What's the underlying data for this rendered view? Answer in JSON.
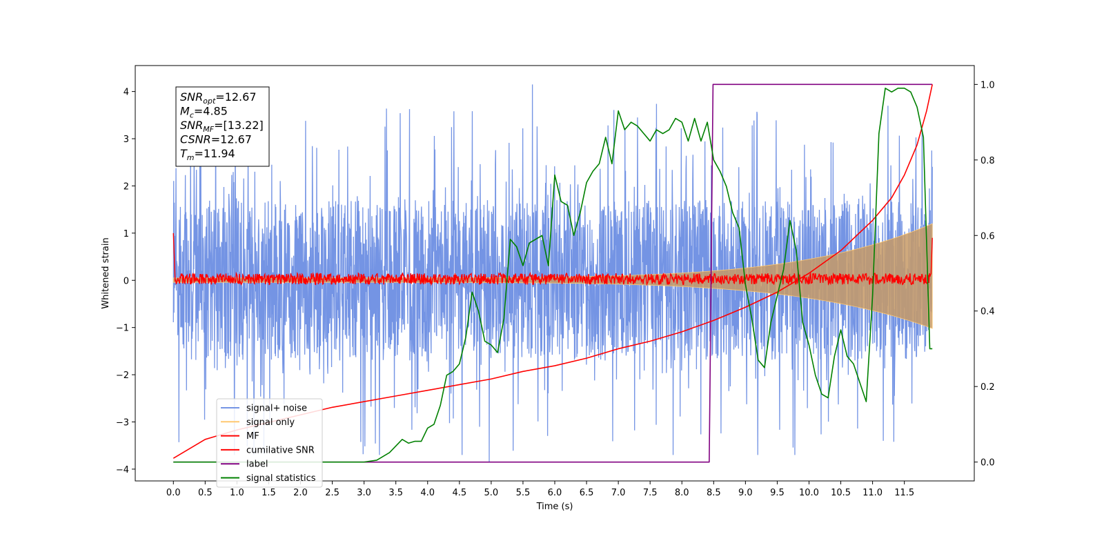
{
  "chart_data": {
    "type": "line",
    "xlabel": "Time (s)",
    "ylabel": "Whitened strain",
    "xlim": [
      -0.6,
      12.6
    ],
    "ylim_left": [
      -4.25,
      4.55
    ],
    "ylim_right": [
      -0.05,
      1.05
    ],
    "x_ticks": [
      "0.0",
      "0.5",
      "1.0",
      "1.5",
      "2.0",
      "2.5",
      "3.0",
      "3.5",
      "4.0",
      "4.5",
      "5.0",
      "5.5",
      "6.0",
      "6.5",
      "7.0",
      "7.5",
      "8.0",
      "8.5",
      "9.0",
      "9.5",
      "10.0",
      "10.5",
      "11.0",
      "11.5"
    ],
    "y_ticks_left": [
      "−4",
      "−3",
      "−2",
      "−1",
      "0",
      "1",
      "2",
      "3",
      "4"
    ],
    "y_ticks_right": [
      "0.0",
      "0.2",
      "0.4",
      "0.6",
      "0.8",
      "1.0"
    ],
    "grid": false,
    "legend_position": "lower-left",
    "legend": [
      {
        "label": "signal+ noise",
        "color": "#7494e4"
      },
      {
        "label": "signal only",
        "color": "#ffc870"
      },
      {
        "label": "MF",
        "color": "#ff0000"
      },
      {
        "label": "cumilative SNR",
        "color": "#ff0000"
      },
      {
        "label": "label",
        "color": "#800080"
      },
      {
        "label": "signal statistics",
        "color": "#008000"
      }
    ],
    "annotation": [
      {
        "sym": "SNR",
        "sub": "opt",
        "value": "=12.67"
      },
      {
        "sym": "M",
        "sub": "c",
        "value": "=4.85"
      },
      {
        "sym": "SNR",
        "sub": "MF",
        "value": "=[13.22]"
      },
      {
        "sym": "CSNR",
        "sub": "",
        "value": "=12.67"
      },
      {
        "sym": "T",
        "sub": "m",
        "value": "=11.94"
      }
    ],
    "series": [
      {
        "name": "signal+ noise",
        "axis": "left",
        "color": "#7494e4",
        "description": "noise band roughly ±2.5 with spikes to about ±4, from 0 to 11.94 s"
      },
      {
        "name": "signal only",
        "axis": "left",
        "color": "#ffc870",
        "description": "chirp envelope growing from ~0.05 to ~1.2 at 11.94 s"
      },
      {
        "name": "MF",
        "axis": "left",
        "color": "#ff0000",
        "description": "matched filter output near 0 (±0.15), starts at 1.0 and ends at 0.9"
      },
      {
        "name": "cumilative SNR",
        "axis": "right",
        "color": "#ff0000",
        "x": [
          0.0,
          0.5,
          1.0,
          1.5,
          2.0,
          2.5,
          3.0,
          3.5,
          4.0,
          4.5,
          5.0,
          5.5,
          6.0,
          6.5,
          7.0,
          7.5,
          8.0,
          8.5,
          9.0,
          9.5,
          10.0,
          10.5,
          11.0,
          11.3,
          11.5,
          11.7,
          11.85,
          11.94
        ],
        "y": [
          0.01,
          0.06,
          0.085,
          0.105,
          0.125,
          0.145,
          0.16,
          0.175,
          0.19,
          0.205,
          0.22,
          0.24,
          0.255,
          0.275,
          0.3,
          0.32,
          0.345,
          0.375,
          0.41,
          0.45,
          0.5,
          0.56,
          0.64,
          0.7,
          0.76,
          0.84,
          0.93,
          1.0
        ]
      },
      {
        "name": "label",
        "axis": "right",
        "color": "#800080",
        "x": [
          0.0,
          8.43,
          8.49,
          11.94
        ],
        "y": [
          0.0,
          0.0,
          1.0,
          1.0
        ]
      },
      {
        "name": "signal statistics",
        "axis": "right",
        "color": "#008000",
        "x": [
          0.0,
          0.5,
          1.0,
          2.0,
          3.0,
          3.2,
          3.4,
          3.6,
          3.7,
          3.8,
          3.9,
          4.0,
          4.1,
          4.2,
          4.3,
          4.4,
          4.5,
          4.6,
          4.7,
          4.8,
          4.9,
          5.0,
          5.1,
          5.2,
          5.3,
          5.4,
          5.5,
          5.6,
          5.7,
          5.8,
          5.9,
          6.0,
          6.1,
          6.2,
          6.3,
          6.4,
          6.5,
          6.6,
          6.7,
          6.8,
          6.9,
          7.0,
          7.1,
          7.2,
          7.3,
          7.4,
          7.5,
          7.6,
          7.7,
          7.8,
          7.9,
          8.0,
          8.1,
          8.2,
          8.3,
          8.4,
          8.5,
          8.6,
          8.7,
          8.8,
          8.9,
          9.0,
          9.1,
          9.2,
          9.3,
          9.4,
          9.5,
          9.6,
          9.7,
          9.8,
          9.9,
          10.0,
          10.1,
          10.2,
          10.3,
          10.4,
          10.5,
          10.6,
          10.7,
          10.8,
          10.9,
          11.0,
          11.1,
          11.2,
          11.3,
          11.4,
          11.5,
          11.6,
          11.7,
          11.8,
          11.9,
          11.94
        ],
        "y": [
          0.0,
          0.0,
          0.0,
          0.0,
          0.0,
          0.005,
          0.025,
          0.06,
          0.05,
          0.055,
          0.055,
          0.09,
          0.1,
          0.15,
          0.23,
          0.24,
          0.26,
          0.33,
          0.45,
          0.4,
          0.32,
          0.31,
          0.29,
          0.38,
          0.59,
          0.57,
          0.52,
          0.58,
          0.59,
          0.6,
          0.52,
          0.76,
          0.69,
          0.68,
          0.6,
          0.66,
          0.74,
          0.77,
          0.79,
          0.86,
          0.79,
          0.93,
          0.88,
          0.9,
          0.89,
          0.87,
          0.85,
          0.88,
          0.87,
          0.88,
          0.91,
          0.9,
          0.85,
          0.91,
          0.85,
          0.9,
          0.8,
          0.77,
          0.73,
          0.66,
          0.62,
          0.47,
          0.38,
          0.27,
          0.25,
          0.37,
          0.44,
          0.51,
          0.64,
          0.56,
          0.37,
          0.31,
          0.23,
          0.18,
          0.17,
          0.28,
          0.35,
          0.28,
          0.26,
          0.21,
          0.16,
          0.44,
          0.87,
          0.99,
          0.98,
          0.99,
          0.99,
          0.98,
          0.94,
          0.86,
          0.3,
          0.3
        ]
      }
    ]
  }
}
